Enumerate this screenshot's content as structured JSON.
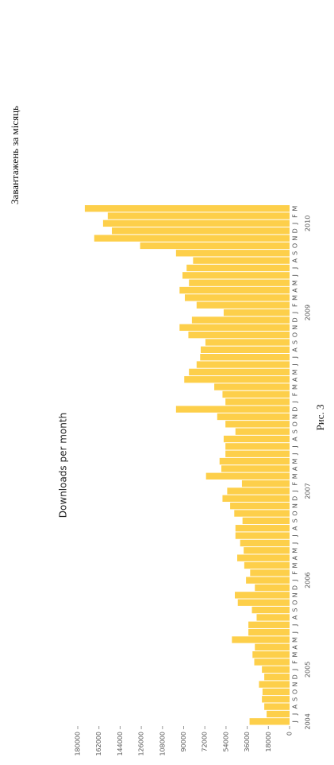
{
  "heading": "Завантажень за місяць",
  "caption": "Рис. 3",
  "chart_data": {
    "type": "bar",
    "title": "Downloads per month",
    "color": "#fdcf4a",
    "categories": [
      "J",
      "J",
      "A",
      "S",
      "O",
      "N",
      "D",
      "J",
      "F",
      "M",
      "A",
      "M",
      "J",
      "J",
      "A",
      "S",
      "O",
      "N",
      "D",
      "J",
      "F",
      "M",
      "A",
      "M",
      "J",
      "J",
      "A",
      "S",
      "O",
      "N",
      "D",
      "J",
      "F",
      "M",
      "A",
      "M",
      "J",
      "J",
      "A",
      "S",
      "O",
      "N",
      "D",
      "J",
      "F",
      "M",
      "A",
      "M",
      "J",
      "J",
      "A",
      "S",
      "O",
      "N",
      "D",
      "J",
      "F",
      "M",
      "A",
      "M",
      "J",
      "J",
      "A",
      "S",
      "O",
      "N",
      "D",
      "J",
      "F",
      "M"
    ],
    "years": [
      "2004",
      null,
      null,
      null,
      null,
      null,
      null,
      "2005",
      null,
      null,
      null,
      null,
      null,
      null,
      null,
      null,
      null,
      null,
      null,
      "2006",
      null,
      null,
      null,
      null,
      null,
      null,
      null,
      null,
      null,
      null,
      null,
      "2007",
      null,
      null,
      null,
      null,
      null,
      null,
      null,
      null,
      null,
      null,
      null,
      null,
      null,
      null,
      null,
      null,
      null,
      null,
      null,
      null,
      null,
      null,
      null,
      "2009",
      null,
      null,
      null,
      null,
      null,
      null,
      null,
      null,
      null,
      null,
      null,
      "2010",
      null,
      null
    ],
    "values": [
      34000,
      19500,
      21500,
      23500,
      23000,
      26000,
      21500,
      23500,
      30000,
      31500,
      29500,
      49000,
      35000,
      35000,
      28000,
      32000,
      44000,
      46500,
      29500,
      37000,
      33500,
      38500,
      44500,
      39000,
      42000,
      46000,
      46000,
      40000,
      47000,
      50500,
      57000,
      53000,
      40500,
      71000,
      58000,
      59500,
      54500,
      54500,
      56000,
      46000,
      54500,
      61500,
      96500,
      54500,
      57000,
      64000,
      89500,
      85500,
      79000,
      76000,
      75500,
      71500,
      86000,
      93500,
      83000,
      56000,
      79000,
      89000,
      93500,
      85500,
      91000,
      87500,
      82000,
      96500,
      127000,
      166000,
      151000,
      158500,
      154500,
      174000
    ],
    "ylim": [
      0,
      180000
    ],
    "yticks": [
      0,
      18000,
      36000,
      54000,
      72000,
      90000,
      108000,
      126000,
      144000,
      162000,
      180000
    ]
  }
}
